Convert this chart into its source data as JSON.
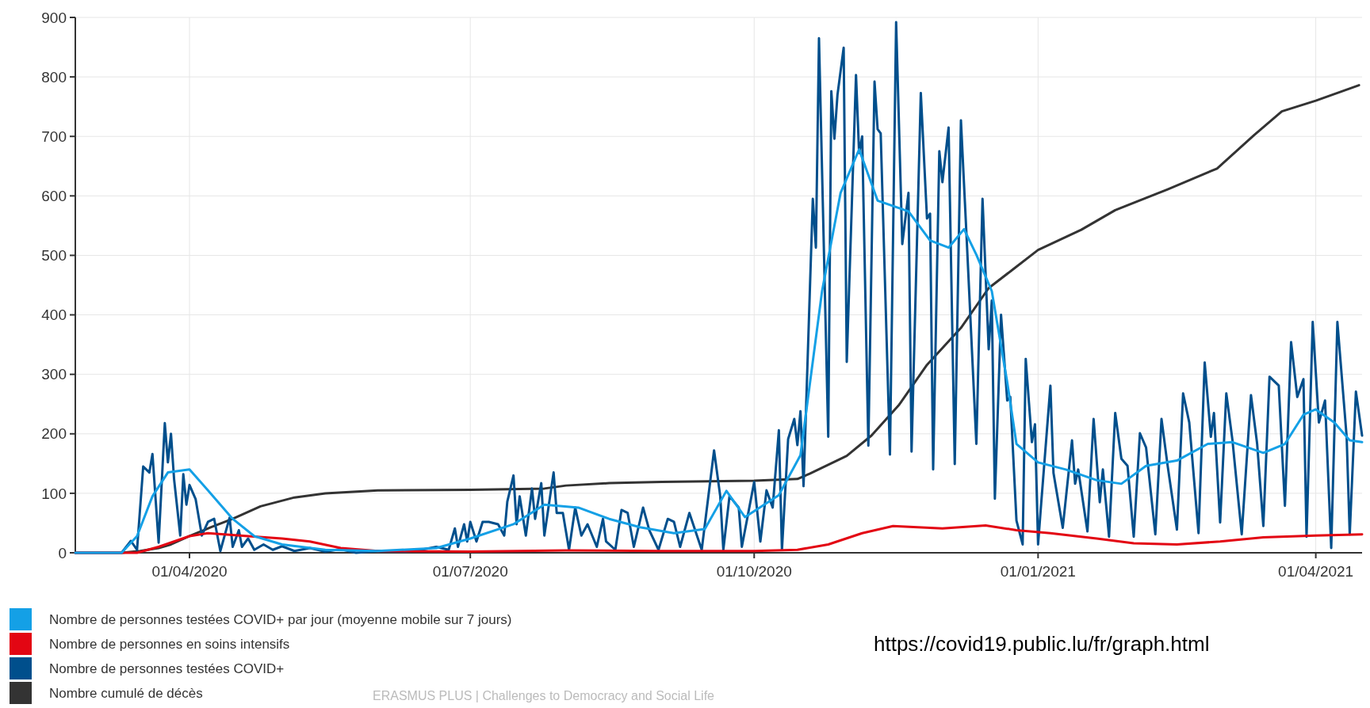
{
  "chart_data": {
    "type": "line",
    "xlim": [
      "2020-02-24",
      "2021-04-16"
    ],
    "ylim": [
      0,
      900
    ],
    "xticks": [
      {
        "value": "2020-04-01",
        "label": "01/04/2020"
      },
      {
        "value": "2020-07-01",
        "label": "01/07/2020"
      },
      {
        "value": "2020-10-01",
        "label": "01/10/2020"
      },
      {
        "value": "2021-01-01",
        "label": "01/01/2021"
      },
      {
        "value": "2021-04-01",
        "label": "01/04/2021"
      }
    ],
    "yticks": [
      0,
      100,
      200,
      300,
      400,
      500,
      600,
      700,
      800,
      900
    ],
    "grid": true,
    "legend": "bottom",
    "series": [
      {
        "name": "Nombre de personnes testées COVID+ par jour (moyenne mobile sur 7 jours)",
        "color": "#14a0e6",
        "x": [
          "2020-02-24",
          "2020-03-10",
          "2020-03-15",
          "2020-03-20",
          "2020-03-25",
          "2020-04-01",
          "2020-04-07",
          "2020-04-15",
          "2020-04-22",
          "2020-05-01",
          "2020-05-15",
          "2020-06-01",
          "2020-06-20",
          "2020-07-01",
          "2020-07-15",
          "2020-07-25",
          "2020-08-05",
          "2020-08-15",
          "2020-08-25",
          "2020-09-05",
          "2020-09-15",
          "2020-09-22",
          "2020-09-28",
          "2020-10-09",
          "2020-10-16",
          "2020-10-23",
          "2020-10-29",
          "2020-11-04",
          "2020-11-10",
          "2020-11-20",
          "2020-11-27",
          "2020-12-03",
          "2020-12-08",
          "2020-12-12",
          "2020-12-17",
          "2020-12-22",
          "2020-12-25",
          "2021-01-01",
          "2021-01-10",
          "2021-01-20",
          "2021-01-28",
          "2021-02-05",
          "2021-02-15",
          "2021-02-25",
          "2021-03-05",
          "2021-03-15",
          "2021-03-22",
          "2021-03-28",
          "2021-04-01",
          "2021-04-07",
          "2021-04-12",
          "2021-04-16"
        ],
        "values": [
          0,
          0,
          28,
          95,
          135,
          140,
          105,
          57,
          28,
          14,
          5,
          3,
          8,
          24,
          48,
          81,
          76,
          57,
          43,
          33,
          40,
          104,
          60,
          97,
          164,
          440,
          605,
          678,
          592,
          574,
          525,
          513,
          544,
          501,
          440,
          287,
          183,
          152,
          140,
          122,
          116,
          146,
          155,
          183,
          186,
          168,
          183,
          232,
          241,
          219,
          189,
          186
        ]
      },
      {
        "name": "Nombre de personnes en soins intensifs",
        "color": "#e30613",
        "x": [
          "2020-02-24",
          "2020-03-15",
          "2020-03-22",
          "2020-04-01",
          "2020-04-07",
          "2020-04-20",
          "2020-05-01",
          "2020-05-10",
          "2020-05-20",
          "2020-06-01",
          "2020-07-01",
          "2020-08-01",
          "2020-09-01",
          "2020-10-01",
          "2020-10-15",
          "2020-10-25",
          "2020-11-05",
          "2020-11-15",
          "2020-12-01",
          "2020-12-15",
          "2020-12-25",
          "2021-01-05",
          "2021-01-20",
          "2021-02-01",
          "2021-02-15",
          "2021-03-01",
          "2021-03-15",
          "2021-04-01",
          "2021-04-16"
        ],
        "values": [
          0,
          0,
          10,
          28,
          33,
          28,
          24,
          19,
          8,
          3,
          2,
          4,
          3,
          3,
          5,
          14,
          33,
          45,
          41,
          46,
          38,
          33,
          24,
          16,
          14,
          19,
          26,
          29,
          31
        ]
      },
      {
        "name": "Nombre de personnes testées COVID+",
        "color": "#004f8c",
        "x": [
          "2020-02-24",
          "2020-03-10",
          "2020-03-13",
          "2020-03-15",
          "2020-03-17",
          "2020-03-19",
          "2020-03-20",
          "2020-03-22",
          "2020-03-24",
          "2020-03-25",
          "2020-03-26",
          "2020-03-27",
          "2020-03-29",
          "2020-03-30",
          "2020-03-31",
          "2020-04-01",
          "2020-04-03",
          "2020-04-05",
          "2020-04-07",
          "2020-04-09",
          "2020-04-11",
          "2020-04-14",
          "2020-04-15",
          "2020-04-17",
          "2020-04-18",
          "2020-04-20",
          "2020-04-22",
          "2020-04-25",
          "2020-04-28",
          "2020-05-01",
          "2020-05-05",
          "2020-05-10",
          "2020-05-15",
          "2020-05-20",
          "2020-05-25",
          "2020-06-01",
          "2020-06-10",
          "2020-06-15",
          "2020-06-20",
          "2020-06-24",
          "2020-06-26",
          "2020-06-27",
          "2020-06-29",
          "2020-06-30",
          "2020-07-01",
          "2020-07-03",
          "2020-07-05",
          "2020-07-07",
          "2020-07-10",
          "2020-07-12",
          "2020-07-13",
          "2020-07-15",
          "2020-07-16",
          "2020-07-17",
          "2020-07-19",
          "2020-07-21",
          "2020-07-22",
          "2020-07-24",
          "2020-07-25",
          "2020-07-28",
          "2020-07-29",
          "2020-07-31",
          "2020-08-02",
          "2020-08-04",
          "2020-08-06",
          "2020-08-08",
          "2020-08-11",
          "2020-08-13",
          "2020-08-14",
          "2020-08-17",
          "2020-08-19",
          "2020-08-21",
          "2020-08-23",
          "2020-08-26",
          "2020-08-28",
          "2020-08-31",
          "2020-09-03",
          "2020-09-05",
          "2020-09-07",
          "2020-09-10",
          "2020-09-14",
          "2020-09-18",
          "2020-09-20",
          "2020-09-21",
          "2020-09-23",
          "2020-09-26",
          "2020-09-27",
          "2020-10-01",
          "2020-10-03",
          "2020-10-05",
          "2020-10-07",
          "2020-10-09",
          "2020-10-10",
          "2020-10-12",
          "2020-10-14",
          "2020-10-15",
          "2020-10-16",
          "2020-10-17",
          "2020-10-20",
          "2020-10-21",
          "2020-10-22",
          "2020-10-25",
          "2020-10-26",
          "2020-10-27",
          "2020-10-28",
          "2020-10-30",
          "2020-10-31",
          "2020-11-03",
          "2020-11-04",
          "2020-11-05",
          "2020-11-07",
          "2020-11-09",
          "2020-11-10",
          "2020-11-11",
          "2020-11-14",
          "2020-11-16",
          "2020-11-18",
          "2020-11-20",
          "2020-11-21",
          "2020-11-24",
          "2020-11-26",
          "2020-11-27",
          "2020-11-28",
          "2020-11-30",
          "2020-12-01",
          "2020-12-03",
          "2020-12-05",
          "2020-12-07",
          "2020-12-09",
          "2020-12-12",
          "2020-12-14",
          "2020-12-16",
          "2020-12-17",
          "2020-12-18",
          "2020-12-20",
          "2020-12-22",
          "2020-12-23",
          "2020-12-25",
          "2020-12-27",
          "2020-12-28",
          "2020-12-30",
          "2020-12-31",
          "2021-01-01",
          "2021-01-02",
          "2021-01-05",
          "2021-01-06",
          "2021-01-09",
          "2021-01-12",
          "2021-01-13",
          "2021-01-14",
          "2021-01-17",
          "2021-01-19",
          "2021-01-21",
          "2021-01-22",
          "2021-01-24",
          "2021-01-26",
          "2021-01-28",
          "2021-01-30",
          "2021-02-01",
          "2021-02-03",
          "2021-02-05",
          "2021-02-08",
          "2021-02-10",
          "2021-02-12",
          "2021-02-15",
          "2021-02-17",
          "2021-02-19",
          "2021-02-22",
          "2021-02-24",
          "2021-02-26",
          "2021-02-27",
          "2021-03-01",
          "2021-03-03",
          "2021-03-05",
          "2021-03-08",
          "2021-03-11",
          "2021-03-13",
          "2021-03-15",
          "2021-03-17",
          "2021-03-20",
          "2021-03-22",
          "2021-03-24",
          "2021-03-26",
          "2021-03-28",
          "2021-03-29",
          "2021-03-31",
          "2021-04-02",
          "2021-04-04",
          "2021-04-06",
          "2021-04-08",
          "2021-04-11",
          "2021-04-12",
          "2021-04-14",
          "2021-04-16"
        ],
        "values": [
          0,
          0,
          20,
          5,
          145,
          135,
          166,
          17,
          218,
          152,
          200,
          124,
          29,
          132,
          81,
          114,
          90,
          29,
          52,
          57,
          3,
          59,
          10,
          38,
          10,
          24,
          5,
          14,
          5,
          11,
          3,
          8,
          2,
          6,
          0,
          3,
          2,
          5,
          10,
          5,
          41,
          10,
          48,
          19,
          52,
          19,
          52,
          52,
          48,
          29,
          86,
          130,
          48,
          95,
          29,
          108,
          57,
          117,
          29,
          135,
          67,
          67,
          5,
          76,
          29,
          48,
          10,
          57,
          19,
          5,
          72,
          67,
          10,
          76,
          38,
          5,
          57,
          52,
          10,
          67,
          5,
          172,
          95,
          5,
          95,
          76,
          10,
          119,
          19,
          105,
          76,
          206,
          5,
          191,
          225,
          181,
          238,
          112,
          595,
          513,
          865,
          195,
          776,
          696,
          770,
          849,
          321,
          803,
          672,
          700,
          180,
          792,
          712,
          705,
          165,
          892,
          519,
          605,
          170,
          773,
          562,
          570,
          140,
          675,
          623,
          715,
          149,
          727,
          513,
          183,
          595,
          342,
          424,
          91,
          400,
          256,
          262,
          54,
          14,
          326,
          186,
          216,
          14,
          82,
          281,
          134,
          42,
          189,
          116,
          140,
          36,
          225,
          85,
          140,
          27,
          235,
          158,
          146,
          27,
          201,
          177,
          31,
          225,
          146,
          39,
          268,
          219,
          33,
          320,
          195,
          235,
          51,
          268,
          189,
          31,
          265,
          183,
          45,
          296,
          281,
          79,
          354,
          262,
          292,
          27,
          388,
          219,
          256,
          8,
          388,
          195,
          31,
          271,
          197
        ]
      },
      {
        "name": "Nombre cumulé de décès",
        "color": "#333333",
        "x": [
          "2020-02-24",
          "2020-03-10",
          "2020-03-16",
          "2020-03-22",
          "2020-03-26",
          "2020-04-01",
          "2020-04-08",
          "2020-04-15",
          "2020-04-24",
          "2020-05-05",
          "2020-05-15",
          "2020-06-01",
          "2020-07-01",
          "2020-07-25",
          "2020-08-01",
          "2020-08-15",
          "2020-09-01",
          "2020-10-01",
          "2020-10-15",
          "2020-10-19",
          "2020-10-31",
          "2020-11-08",
          "2020-11-17",
          "2020-11-26",
          "2020-12-07",
          "2020-12-16",
          "2020-12-24",
          "2021-01-01",
          "2021-01-15",
          "2021-01-26",
          "2021-02-12",
          "2021-02-28",
          "2021-03-12",
          "2021-03-21",
          "2021-04-01",
          "2021-04-15"
        ],
        "values": [
          0,
          0,
          3,
          8,
          14,
          28,
          43,
          57,
          78,
          93,
          100,
          105,
          106,
          108,
          113,
          117,
          119,
          121,
          124,
          133,
          163,
          197,
          249,
          316,
          378,
          445,
          477,
          509,
          543,
          576,
          611,
          646,
          702,
          742,
          760,
          786
        ]
      }
    ],
    "annotations": [
      "https://covid19.public.lu/fr/graph.html",
      "ERASMUS PLUS | Challenges to Democracy and Social Life"
    ]
  }
}
